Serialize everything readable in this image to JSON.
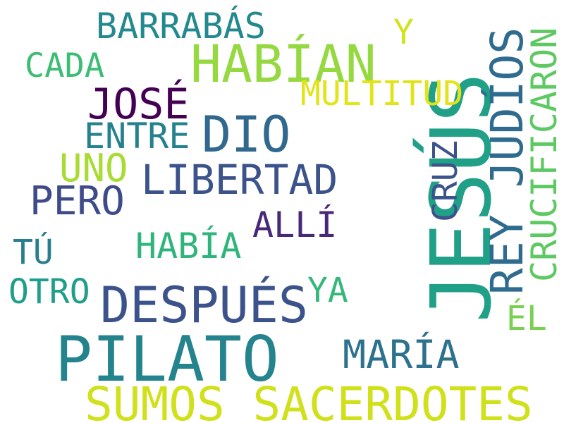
{
  "words": [
    {
      "key": "jesus",
      "text": "JESÚS",
      "color": "#21a088"
    },
    {
      "key": "pilato",
      "text": "PILATO",
      "color": "#24848d"
    },
    {
      "key": "sumos_sacerdotes",
      "text": "SUMOS SACERDOTES",
      "color": "#d0e11c"
    },
    {
      "key": "habian",
      "text": "HABÍAN",
      "color": "#95d840"
    },
    {
      "key": "jose",
      "text": "JOSÉ",
      "color": "#440154"
    },
    {
      "key": "rey_judios",
      "text": "REY JUDÍOS",
      "color": "#2f6b8e"
    },
    {
      "key": "crucificaron",
      "text": "CRUCIFICARON",
      "color": "#5ec962"
    },
    {
      "key": "despues",
      "text": "DESPUÉS",
      "color": "#3b528b"
    },
    {
      "key": "dio",
      "text": "DIO",
      "color": "#31688e"
    },
    {
      "key": "libertad",
      "text": "LIBERTAD",
      "color": "#3b528b"
    },
    {
      "key": "barrabas",
      "text": "BARRABÁS",
      "color": "#23898e"
    },
    {
      "key": "multitud",
      "text": "MULTITUD",
      "color": "#e2e418"
    },
    {
      "key": "pero",
      "text": "PERO",
      "color": "#3e4a89"
    },
    {
      "key": "maria",
      "text": "MARÍA",
      "color": "#2c728e"
    },
    {
      "key": "entre",
      "text": "ENTRE",
      "color": "#26818e"
    },
    {
      "key": "uno",
      "text": "UNO",
      "color": "#a8db34"
    },
    {
      "key": "cruz",
      "text": "CRUZ",
      "color": "#3b528b"
    },
    {
      "key": "alli",
      "text": "ALLÍ",
      "color": "#482878"
    },
    {
      "key": "habia",
      "text": "HABÍA",
      "color": "#2fb47c"
    },
    {
      "key": "cada",
      "text": "CADA",
      "color": "#3dbc74"
    },
    {
      "key": "y",
      "text": "Y",
      "color": "#d2e21b"
    },
    {
      "key": "tu",
      "text": "TÚ",
      "color": "#277f8e"
    },
    {
      "key": "otro",
      "text": "OTRO",
      "color": "#1f9e89"
    },
    {
      "key": "ya",
      "text": "YA",
      "color": "#35b779"
    },
    {
      "key": "el",
      "text": "ÉL",
      "color": "#7ad151"
    }
  ]
}
